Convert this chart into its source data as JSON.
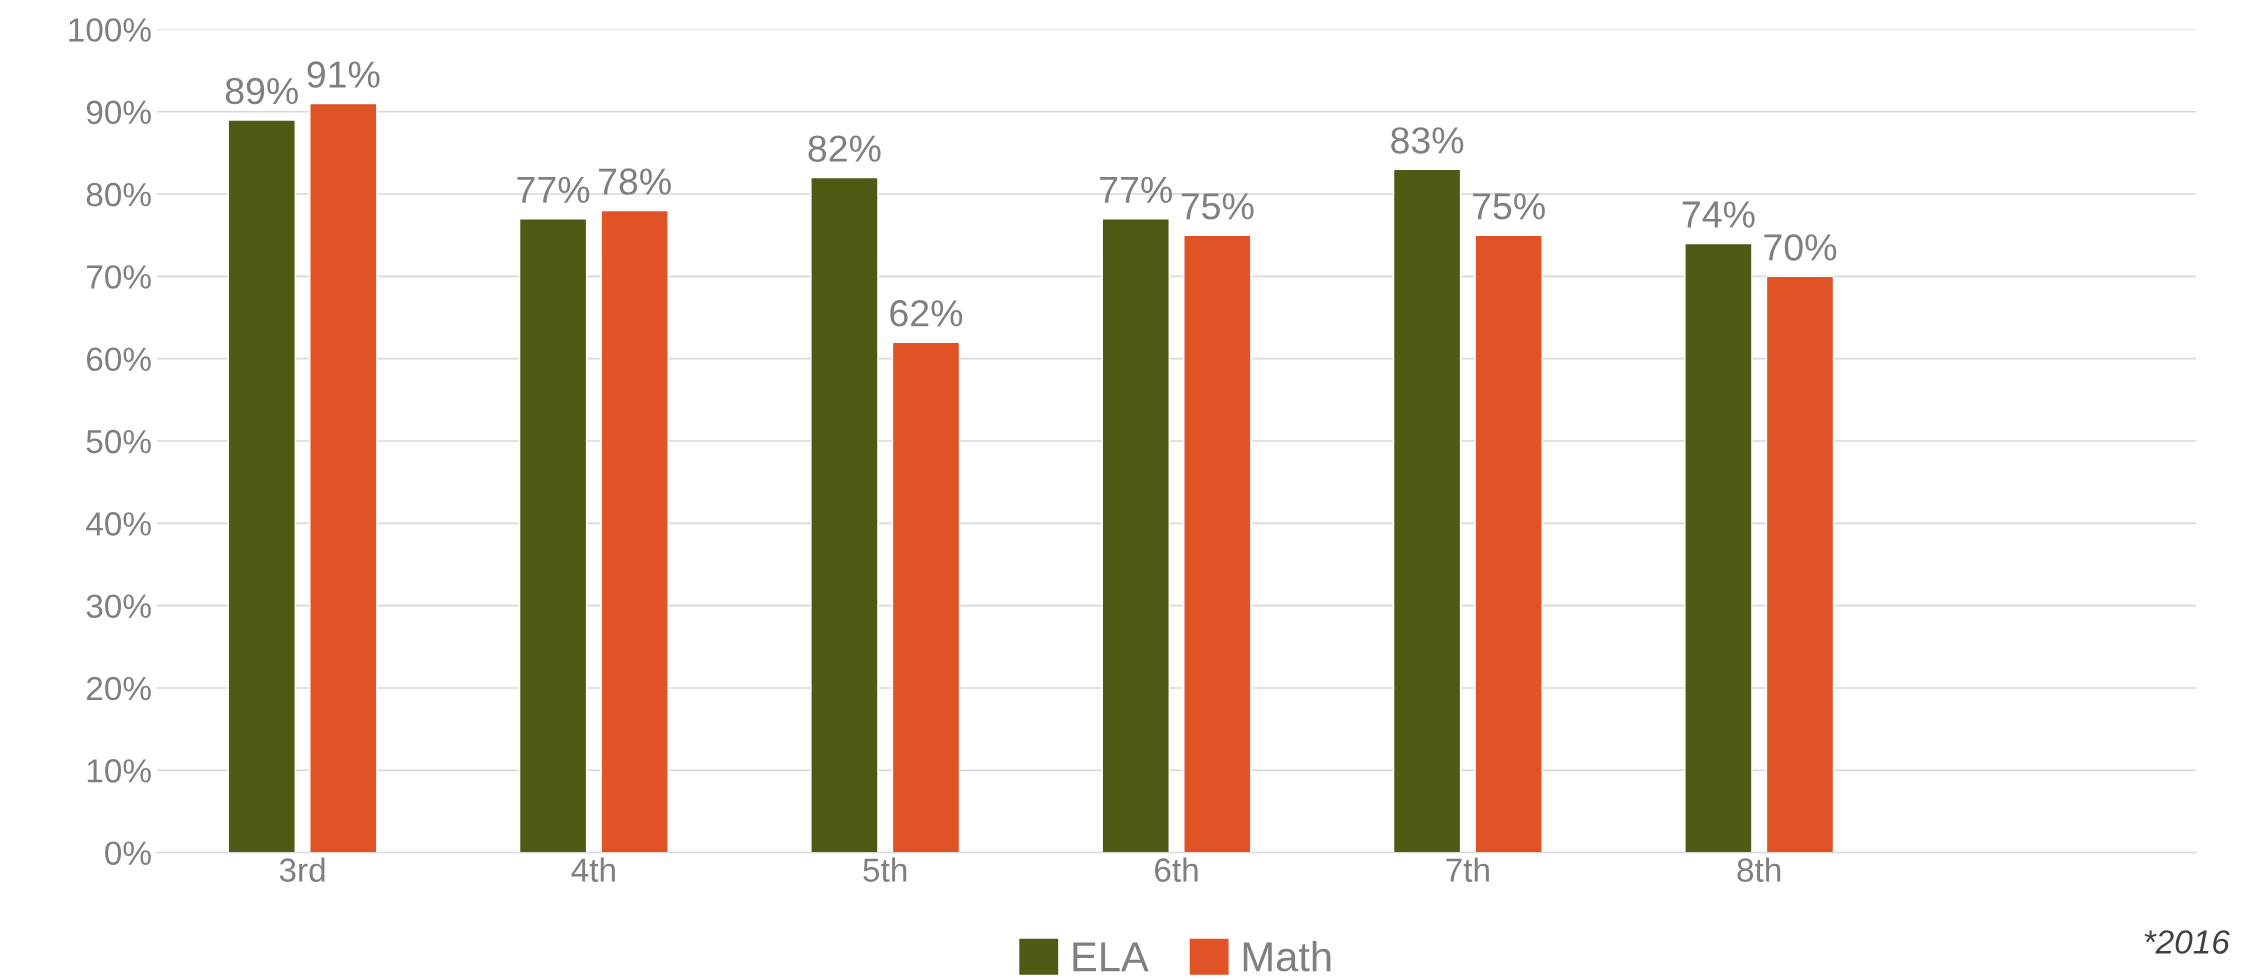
{
  "chart_data": {
    "type": "bar",
    "categories": [
      "3rd",
      "4th",
      "5th",
      "6th",
      "7th",
      "8th",
      null
    ],
    "series": [
      {
        "name": "ELA",
        "color": "#4f5a14",
        "values": [
          89,
          77,
          82,
          77,
          83,
          74,
          null
        ],
        "value_labels": [
          "89%",
          "77%",
          "82%",
          "77%",
          "83%",
          "74%",
          null
        ]
      },
      {
        "name": "Math",
        "color": "#e05326",
        "values": [
          91,
          78,
          62,
          75,
          75,
          70,
          null
        ],
        "value_labels": [
          "91%",
          "78%",
          "62%",
          "75%",
          "75%",
          "70%",
          null
        ]
      }
    ],
    "ylim": [
      0,
      100
    ],
    "yticks": [
      {
        "value": 0,
        "label": "0%"
      },
      {
        "value": 10,
        "label": "10%"
      },
      {
        "value": 20,
        "label": "20%"
      },
      {
        "value": 30,
        "label": "30%"
      },
      {
        "value": 40,
        "label": "40%"
      },
      {
        "value": 50,
        "label": "50%"
      },
      {
        "value": 60,
        "label": "60%"
      },
      {
        "value": 70,
        "label": "70%"
      },
      {
        "value": 80,
        "label": "80%"
      },
      {
        "value": 90,
        "label": "90%"
      },
      {
        "value": 100,
        "label": "100%"
      }
    ],
    "grid": "y",
    "legend": "bottom",
    "annotations": [
      "*2016"
    ]
  }
}
